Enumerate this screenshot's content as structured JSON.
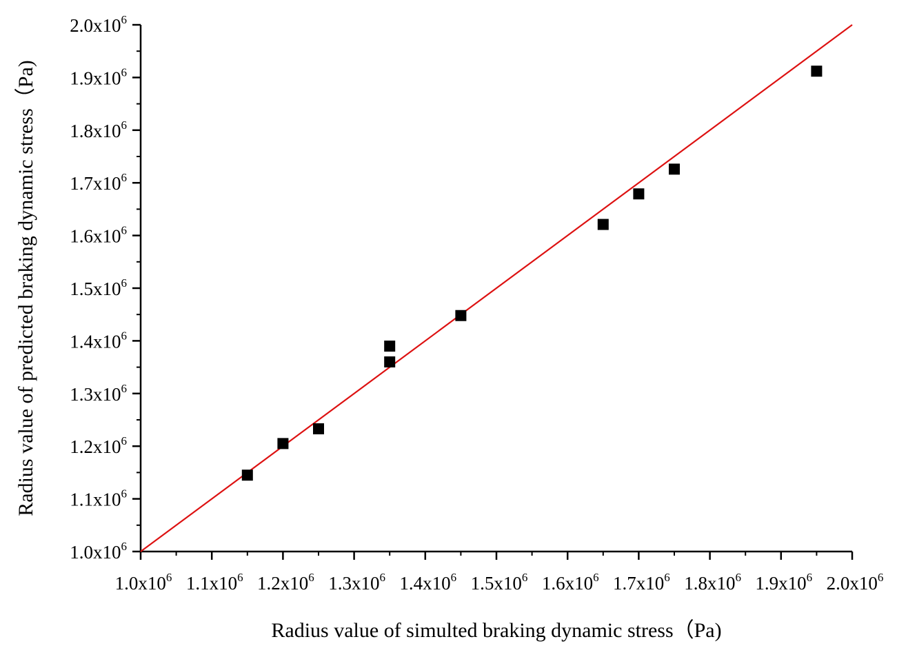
{
  "chart_data": {
    "type": "scatter",
    "title": "",
    "xlabel": "Radius value of simulted braking dynamic stress（Pa)",
    "ylabel": "Radius value of predicted braking dynamic stress（Pa)",
    "xlim": [
      1000000,
      2000000
    ],
    "ylim": [
      1000000,
      2000000
    ],
    "x_ticks": [
      1000000,
      1100000,
      1200000,
      1300000,
      1400000,
      1500000,
      1600000,
      1700000,
      1800000,
      1900000,
      2000000
    ],
    "y_ticks": [
      1000000,
      1100000,
      1200000,
      1300000,
      1400000,
      1500000,
      1600000,
      1700000,
      1800000,
      1900000,
      2000000
    ],
    "x_tick_labels": [
      {
        "base": "1.0x10",
        "exp": "6"
      },
      {
        "base": "1.1x10",
        "exp": "6"
      },
      {
        "base": "1.2x10",
        "exp": "6"
      },
      {
        "base": "1.3x10",
        "exp": "6"
      },
      {
        "base": "1.4x10",
        "exp": "6"
      },
      {
        "base": "1.5x10",
        "exp": "6"
      },
      {
        "base": "1.6x10",
        "exp": "6"
      },
      {
        "base": "1.7x10",
        "exp": "6"
      },
      {
        "base": "1.8x10",
        "exp": "6"
      },
      {
        "base": "1.9x10",
        "exp": "6"
      },
      {
        "base": "2.0x10",
        "exp": "6"
      }
    ],
    "y_tick_labels": [
      {
        "base": "1.0x10",
        "exp": "6"
      },
      {
        "base": "1.1x10",
        "exp": "6"
      },
      {
        "base": "1.2x10",
        "exp": "6"
      },
      {
        "base": "1.3x10",
        "exp": "6"
      },
      {
        "base": "1.4x10",
        "exp": "6"
      },
      {
        "base": "1.5x10",
        "exp": "6"
      },
      {
        "base": "1.6x10",
        "exp": "6"
      },
      {
        "base": "1.7x10",
        "exp": "6"
      },
      {
        "base": "1.8x10",
        "exp": "6"
      },
      {
        "base": "1.9x10",
        "exp": "6"
      },
      {
        "base": "2.0x10",
        "exp": "6"
      }
    ],
    "grid": false,
    "legend": "none",
    "series": [
      {
        "marker": "square",
        "color": "#000000",
        "points": [
          {
            "x": 1150000,
            "y": 1145000
          },
          {
            "x": 1200000,
            "y": 1205000
          },
          {
            "x": 1250000,
            "y": 1233000
          },
          {
            "x": 1350000,
            "y": 1390000
          },
          {
            "x": 1350000,
            "y": 1360000
          },
          {
            "x": 1450000,
            "y": 1448000
          },
          {
            "x": 1650000,
            "y": 1621000
          },
          {
            "x": 1700000,
            "y": 1679000
          },
          {
            "x": 1750000,
            "y": 1726000
          },
          {
            "x": 1950000,
            "y": 1912000
          }
        ]
      }
    ],
    "reference_line": {
      "color": "#dd1111",
      "from": {
        "x": 1000000,
        "y": 1000000
      },
      "to": {
        "x": 2000000,
        "y": 2000000
      }
    }
  }
}
